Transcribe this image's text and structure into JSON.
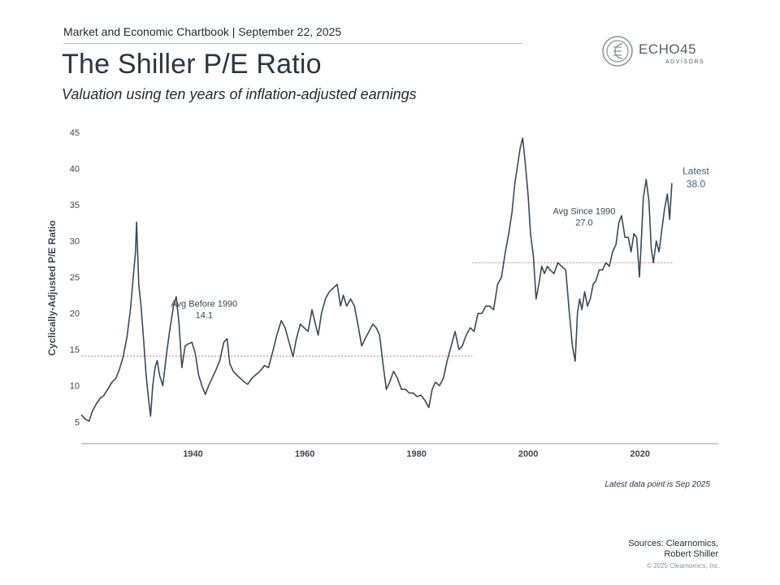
{
  "header": {
    "top_line": "Market and Economic Chartbook | September 22, 2025",
    "title": "The Shiller P/E Ratio",
    "subtitle": "Valuation using ten years of inflation-adjusted earnings"
  },
  "logo": {
    "name": "ECHO45",
    "sub": "ADVISORS",
    "color": "#5a5f63"
  },
  "footer": {
    "note": "Latest data point is Sep 2025",
    "sources_line1": "Sources: Clearnomics,",
    "sources_line2": "Robert Shiller",
    "copyright": "© 2025 Clearnomics, Inc."
  },
  "colors": {
    "line": "#3b4a55",
    "avg": "#e07a86",
    "axis": "#9a9a9a",
    "text": "#3b4652"
  },
  "chart_data": {
    "type": "line",
    "title": "The Shiller P/E Ratio",
    "ylabel": "Cyclically-Adjusted P/E Ratio",
    "xlabel": "",
    "xlim": [
      1920,
      2034
    ],
    "ylim": [
      2,
      45
    ],
    "x_ticks": [
      1940,
      1960,
      1980,
      2000,
      2020
    ],
    "y_ticks": [
      5,
      10,
      15,
      20,
      25,
      30,
      35,
      40,
      45
    ],
    "grid": false,
    "series": [
      {
        "x": [
          1920.0,
          1920.7,
          1921.4,
          1922.0,
          1922.7,
          1923.4,
          1924.0,
          1924.8,
          1925.5,
          1926.2,
          1926.8,
          1927.5,
          1928.2,
          1928.8,
          1929.3,
          1929.7,
          1929.9,
          1930.3,
          1930.7,
          1931.2,
          1931.6,
          1932.0,
          1932.4,
          1932.8,
          1933.2,
          1933.6,
          1934.0,
          1934.6,
          1935.2,
          1935.8,
          1936.5,
          1937.0,
          1937.5,
          1938.0,
          1938.6,
          1939.2,
          1939.8,
          1940.4,
          1941.0,
          1941.6,
          1942.2,
          1942.8,
          1943.4,
          1944.0,
          1944.8,
          1945.5,
          1946.1,
          1946.6,
          1947.2,
          1947.8,
          1948.5,
          1949.2,
          1949.8,
          1950.5,
          1951.2,
          1952.0,
          1952.8,
          1953.5,
          1954.2,
          1955.0,
          1955.8,
          1956.5,
          1957.2,
          1957.9,
          1958.5,
          1959.2,
          1959.9,
          1960.6,
          1961.3,
          1961.9,
          1962.4,
          1963.0,
          1963.7,
          1964.4,
          1965.1,
          1965.8,
          1966.4,
          1966.9,
          1967.5,
          1968.2,
          1968.9,
          1969.5,
          1970.2,
          1970.8,
          1971.5,
          1972.2,
          1972.8,
          1973.4,
          1974.0,
          1974.6,
          1975.2,
          1975.9,
          1976.6,
          1977.3,
          1978.0,
          1978.7,
          1979.4,
          1980.1,
          1980.8,
          1981.5,
          1982.2,
          1982.8,
          1983.4,
          1984.1,
          1984.8,
          1985.5,
          1986.2,
          1986.9,
          1987.6,
          1988.2,
          1988.9,
          1989.6,
          1990.3,
          1991.0,
          1991.7,
          1992.4,
          1993.1,
          1993.8,
          1994.5,
          1995.2,
          1995.9,
          1996.5,
          1997.1,
          1997.6,
          1998.1,
          1998.6,
          1999.0,
          1999.5,
          2000.0,
          2000.4,
          2000.9,
          2001.4,
          2001.9,
          2002.4,
          2002.9,
          2003.4,
          2003.9,
          2004.6,
          2005.3,
          2006.0,
          2006.7,
          2007.3,
          2007.9,
          2008.4,
          2008.8,
          2009.2,
          2009.6,
          2010.1,
          2010.6,
          2011.1,
          2011.6,
          2012.1,
          2012.7,
          2013.3,
          2013.9,
          2014.5,
          2015.1,
          2015.7,
          2016.2,
          2016.7,
          2017.3,
          2017.9,
          2018.4,
          2018.9,
          2019.4,
          2019.9,
          2020.2,
          2020.6,
          2021.1,
          2021.6,
          2022.0,
          2022.4,
          2022.9,
          2023.4,
          2023.9,
          2024.4,
          2024.9,
          2025.3,
          2025.7
        ],
        "y": [
          6.0,
          5.4,
          5.1,
          6.5,
          7.5,
          8.3,
          8.6,
          9.6,
          10.5,
          11.0,
          12.2,
          14.0,
          16.8,
          20.5,
          25.0,
          28.4,
          32.6,
          24.0,
          21.0,
          16.0,
          11.5,
          8.5,
          5.8,
          10.0,
          12.5,
          13.5,
          11.5,
          10.0,
          14.0,
          17.5,
          21.0,
          22.3,
          18.5,
          12.5,
          15.5,
          15.8,
          16.0,
          14.5,
          11.5,
          10.0,
          8.8,
          10.0,
          11.0,
          12.0,
          13.5,
          16.0,
          16.5,
          13.0,
          12.0,
          11.5,
          11.0,
          10.5,
          10.2,
          11.0,
          11.5,
          12.0,
          12.8,
          12.5,
          14.5,
          17.0,
          19.0,
          18.0,
          16.0,
          14.0,
          16.5,
          18.5,
          18.0,
          17.5,
          20.5,
          18.5,
          17.0,
          20.0,
          22.0,
          23.0,
          23.5,
          24.0,
          21.0,
          22.5,
          21.0,
          22.0,
          21.0,
          18.5,
          15.5,
          16.5,
          17.5,
          18.5,
          18.0,
          17.0,
          13.0,
          9.5,
          10.5,
          12.0,
          11.0,
          9.5,
          9.5,
          9.0,
          9.0,
          8.5,
          8.7,
          8.0,
          7.0,
          9.5,
          10.5,
          10.0,
          11.0,
          13.5,
          15.5,
          17.5,
          15.0,
          15.5,
          17.0,
          18.0,
          17.5,
          20.0,
          20.0,
          21.0,
          21.0,
          20.5,
          24.0,
          25.0,
          28.5,
          31.0,
          34.0,
          38.0,
          40.5,
          43.0,
          44.2,
          40.5,
          36.0,
          31.0,
          28.0,
          22.0,
          24.0,
          26.5,
          25.5,
          26.5,
          26.0,
          25.5,
          27.0,
          26.5,
          26.0,
          20.5,
          15.5,
          13.4,
          20.0,
          22.0,
          20.5,
          23.0,
          21.0,
          22.0,
          24.0,
          24.5,
          26.0,
          26.0,
          27.0,
          26.5,
          28.5,
          29.5,
          32.5,
          33.5,
          30.5,
          30.5,
          28.5,
          31.0,
          30.5,
          25.0,
          29.5,
          36.0,
          38.5,
          35.5,
          29.0,
          27.0,
          30.0,
          28.5,
          31.5,
          34.5,
          36.5,
          33.0,
          38.0
        ],
        "color": "#3b4a55"
      }
    ],
    "reference_lines": [
      {
        "from": 1920,
        "to": 1990,
        "y": 14.1,
        "label_line1": "Avg Before 1990",
        "label_line2": "14.1",
        "label_x": 1942.0,
        "label_y": 20.9
      },
      {
        "from": 1990,
        "to": 2026,
        "y": 27.0,
        "label_line1": "Avg Since 1990",
        "label_line2": "27.0",
        "label_x": 2010.0,
        "label_y": 33.7
      }
    ],
    "latest_label": {
      "line1": "Latest",
      "line2": "38.0",
      "x": 2030.0,
      "y": 39.2
    }
  }
}
